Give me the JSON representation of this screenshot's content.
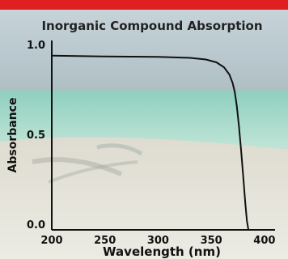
{
  "banner_color": "#e02020",
  "chart_data": {
    "type": "line",
    "title": "Inorganic Compound Absorption",
    "xlabel": "Wavelength (nm)",
    "ylabel": "Absorbance",
    "xlim": [
      200,
      410
    ],
    "ylim": [
      0,
      1.0
    ],
    "x_ticks": [
      "200",
      "250",
      "300",
      "350",
      "400"
    ],
    "y_ticks": [
      "0.0",
      "0.5",
      "1.0"
    ],
    "grid": false,
    "line_color": "#111111",
    "series": [
      {
        "x": [
          200,
          250,
          300,
          330,
          345,
          355,
          362,
          367,
          370,
          372,
          374,
          376,
          378,
          380,
          382,
          383.5,
          385
        ],
        "values": [
          0.97,
          0.965,
          0.963,
          0.957,
          0.948,
          0.932,
          0.905,
          0.865,
          0.82,
          0.77,
          0.69,
          0.58,
          0.45,
          0.3,
          0.15,
          0.05,
          0.0
        ]
      }
    ]
  }
}
